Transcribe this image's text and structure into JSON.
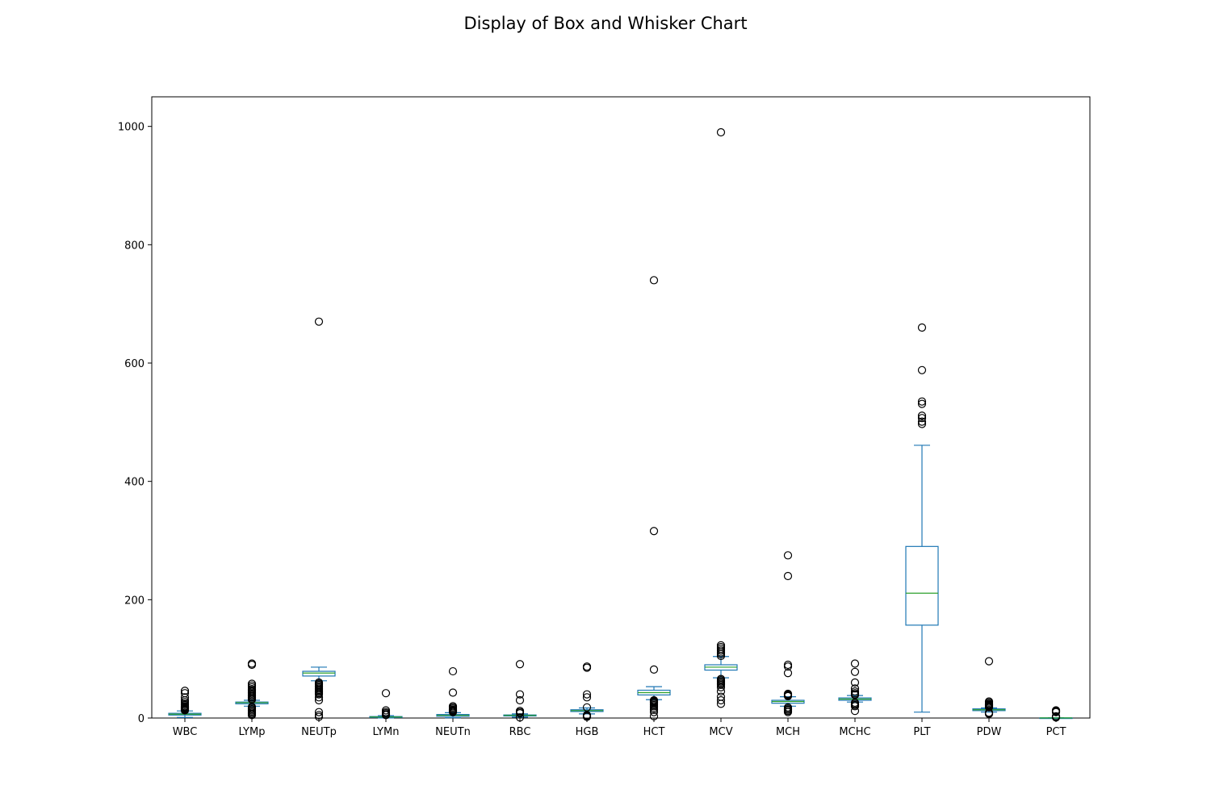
{
  "chart_data": {
    "type": "box",
    "title": "Display of Box and Whisker Chart",
    "xlabel": "",
    "ylabel": "",
    "ylim": [
      0,
      1050
    ],
    "yticks": [
      0,
      200,
      400,
      600,
      800,
      1000
    ],
    "grid": false,
    "colors": {
      "box": "#1f77b4",
      "median": "#2ca02c",
      "flier": "#000000"
    },
    "series": [
      {
        "name": "WBC",
        "q1": 5,
        "median": 6.5,
        "q3": 8,
        "whisker_low": 1,
        "whisker_high": 12,
        "fliers": [
          13,
          14,
          15,
          16,
          17,
          18,
          19,
          20,
          22,
          24,
          27,
          30,
          35,
          42,
          46
        ]
      },
      {
        "name": "LYMp",
        "q1": 24,
        "median": 26,
        "q3": 27,
        "whisker_low": 20,
        "whisker_high": 30,
        "fliers": [
          5,
          7,
          9,
          11,
          13,
          15,
          17,
          19,
          31,
          33,
          35,
          37,
          39,
          41,
          43,
          45,
          47,
          49,
          52,
          55,
          58,
          90,
          92
        ]
      },
      {
        "name": "NEUTp",
        "q1": 71,
        "median": 76,
        "q3": 79,
        "whisker_low": 63,
        "whisker_high": 86,
        "fliers": [
          2,
          5,
          10,
          30,
          35,
          40,
          42,
          44,
          46,
          48,
          50,
          52,
          54,
          56,
          58,
          60,
          670
        ]
      },
      {
        "name": "LYMn",
        "q1": 1,
        "median": 1.8,
        "q3": 2.5,
        "whisker_low": 0.2,
        "whisker_high": 4,
        "fliers": [
          5,
          6,
          8,
          10,
          13,
          42
        ]
      },
      {
        "name": "NEUTn",
        "q1": 3,
        "median": 4.5,
        "q3": 6,
        "whisker_low": 0.5,
        "whisker_high": 9,
        "fliers": [
          10,
          11,
          12,
          13,
          14,
          16,
          18,
          20,
          43,
          79
        ]
      },
      {
        "name": "RBC",
        "q1": 3.5,
        "median": 4.5,
        "q3": 5.2,
        "whisker_low": 1.5,
        "whisker_high": 7,
        "fliers": [
          1,
          8,
          10,
          12,
          30,
          40,
          91
        ]
      },
      {
        "name": "HGB",
        "q1": 11,
        "median": 12.5,
        "q3": 14,
        "whisker_low": 7,
        "whisker_high": 17,
        "fliers": [
          2,
          3,
          4,
          5,
          18,
          35,
          40,
          85,
          87
        ]
      },
      {
        "name": "HCT",
        "q1": 39,
        "median": 43,
        "q3": 47,
        "whisker_low": 31,
        "whisker_high": 53,
        "fliers": [
          3,
          10,
          14,
          17,
          20,
          22,
          24,
          26,
          27,
          28,
          29,
          30,
          82,
          316,
          740
        ]
      },
      {
        "name": "MCV",
        "q1": 81,
        "median": 86,
        "q3": 90,
        "whisker_low": 68,
        "whisker_high": 104,
        "fliers": [
          24,
          30,
          36,
          45,
          52,
          56,
          58,
          60,
          62,
          64,
          66,
          105,
          108,
          111,
          114,
          117,
          120,
          123,
          990
        ]
      },
      {
        "name": "MCH",
        "q1": 25,
        "median": 28,
        "q3": 30,
        "whisker_low": 20,
        "whisker_high": 36,
        "fliers": [
          10,
          12,
          14,
          16,
          18,
          37,
          38,
          39,
          40,
          41,
          76,
          87,
          90,
          240,
          275
        ]
      },
      {
        "name": "MCHC",
        "q1": 30,
        "median": 32,
        "q3": 34,
        "whisker_low": 27,
        "whisker_high": 38,
        "fliers": [
          12,
          20,
          22,
          24,
          26,
          39,
          40,
          42,
          45,
          50,
          60,
          78,
          92
        ]
      },
      {
        "name": "PLT",
        "q1": 157,
        "median": 211,
        "q3": 290,
        "whisker_low": 10,
        "whisker_high": 461,
        "fliers": [
          497,
          501,
          507,
          511,
          531,
          535,
          588,
          660
        ]
      },
      {
        "name": "PDW",
        "q1": 12.5,
        "median": 14,
        "q3": 15.5,
        "whisker_low": 10,
        "whisker_high": 17,
        "fliers": [
          7,
          8,
          9,
          18,
          19,
          20,
          21,
          22,
          23,
          24,
          26,
          28,
          96
        ]
      },
      {
        "name": "PCT",
        "q1": 0.15,
        "median": 0.22,
        "q3": 0.3,
        "whisker_low": 0,
        "whisker_high": 0.5,
        "fliers": [
          1,
          2,
          3,
          10,
          11,
          12,
          13
        ]
      }
    ]
  }
}
